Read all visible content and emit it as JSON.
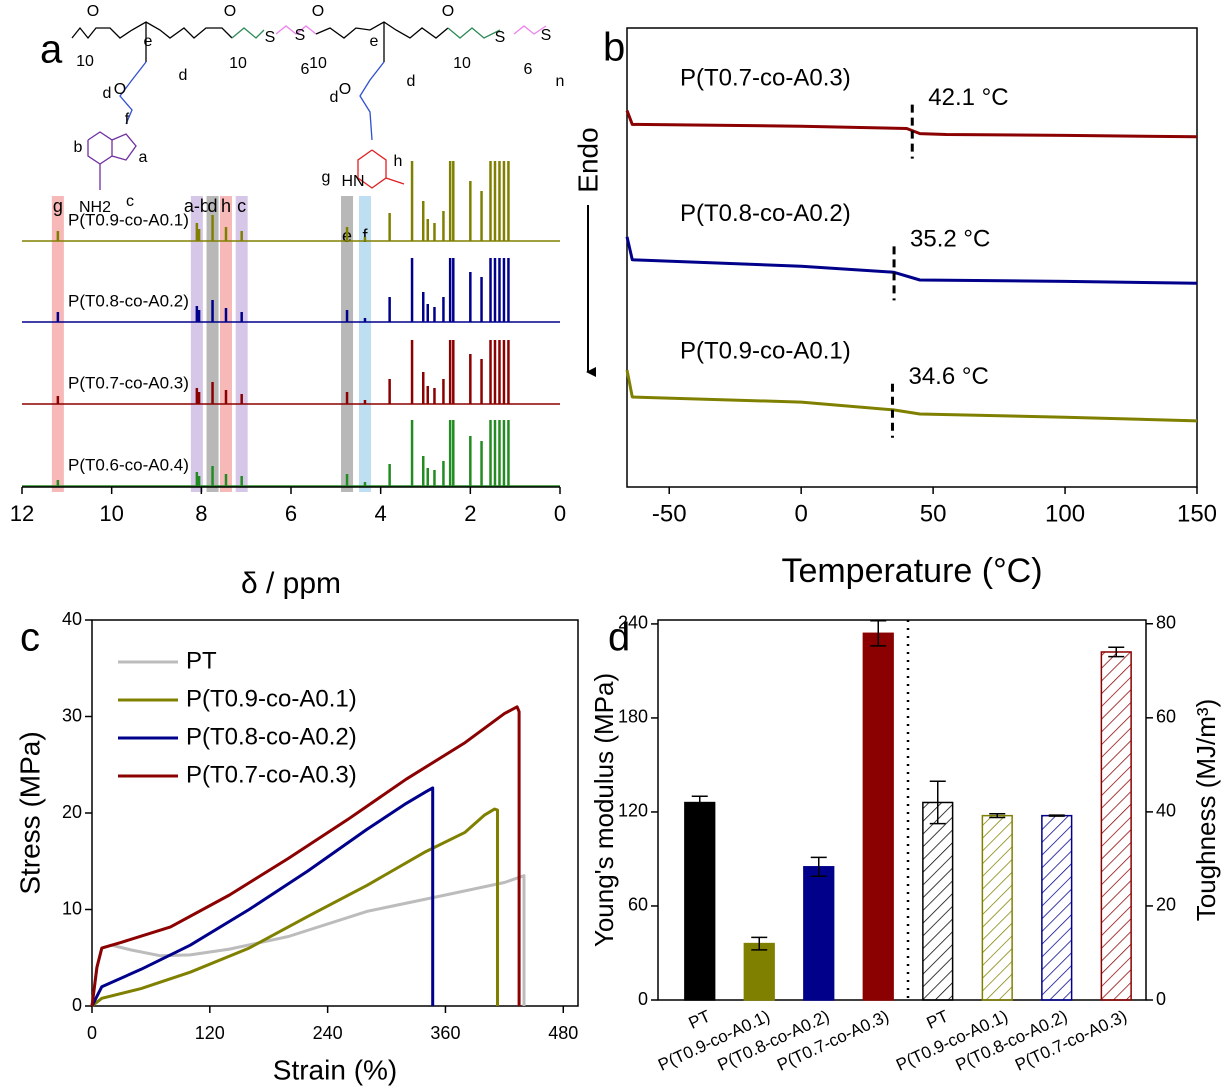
{
  "chart_data": [
    {
      "type": "spectrum",
      "panel": "a",
      "xlabel": "δ / ppm",
      "xlim": [
        12,
        0
      ],
      "xticks": [
        12,
        10,
        8,
        6,
        4,
        2,
        0
      ],
      "x": [
        11.2,
        8.1,
        8.05,
        7.75,
        7.45,
        7.1,
        4.75,
        4.35,
        3.8,
        3.3,
        3.05,
        2.95,
        2.8,
        2.6,
        2.45,
        2.38,
        2.0,
        1.75,
        1.55,
        1.45,
        1.35,
        1.25,
        1.15
      ],
      "series": [
        {
          "name": "P(T0.9-co-A0.1)",
          "color": "#808000",
          "values": [
            10,
            18,
            12,
            26,
            14,
            10,
            14,
            4,
            28,
            80,
            40,
            22,
            18,
            30,
            80,
            80,
            60,
            50,
            80,
            80,
            80,
            80,
            80
          ]
        },
        {
          "name": "P(T0.8-co-A0.2)",
          "color": "#00008b",
          "values": [
            10,
            16,
            12,
            22,
            14,
            10,
            12,
            4,
            25,
            64,
            30,
            18,
            15,
            25,
            64,
            64,
            50,
            45,
            64,
            64,
            64,
            64,
            64
          ]
        },
        {
          "name": "P(T0.7-co-A0.3)",
          "color": "#8b0000",
          "values": [
            8,
            16,
            12,
            22,
            14,
            10,
            12,
            4,
            25,
            64,
            32,
            18,
            16,
            25,
            64,
            64,
            50,
            45,
            64,
            64,
            64,
            64,
            64
          ]
        },
        {
          "name": "P(T0.6-co-A0.4)",
          "color": "#228b22",
          "values": [
            6,
            14,
            10,
            20,
            12,
            10,
            12,
            4,
            22,
            66,
            30,
            18,
            16,
            25,
            66,
            66,
            50,
            45,
            66,
            66,
            66,
            66,
            66
          ]
        }
      ],
      "bands": [
        {
          "label": "g",
          "x": 11.2,
          "color": "#f4a0a0",
          "text_color": "#e02020"
        },
        {
          "label": "a-b",
          "x": 8.1,
          "color": "#c8b4e0",
          "text_color": "#7030a0"
        },
        {
          "label": "d",
          "x": 7.75,
          "color": "#a0a0a0",
          "text_color": "#000000"
        },
        {
          "label": "h",
          "x": 7.45,
          "color": "#f4a0a0",
          "text_color": "#e02020"
        },
        {
          "label": "c",
          "x": 7.1,
          "color": "#c8b4e0",
          "text_color": "#7030a0"
        },
        {
          "label": "e",
          "x": 4.75,
          "color": "#a0a0a0",
          "text_color": "#000000"
        },
        {
          "label": "f",
          "x": 4.35,
          "color": "#a8d4ec",
          "text_color": "#4f81bd"
        }
      ],
      "structure_labels": [
        {
          "text": "10",
          "color": "#2e8b57"
        },
        {
          "text": "d",
          "color": "#000000"
        },
        {
          "text": "e",
          "color": "#000000"
        },
        {
          "text": "d",
          "color": "#000000"
        },
        {
          "text": "10",
          "color": "#2e8b57"
        },
        {
          "text": "6",
          "color": "#ee82ee"
        },
        {
          "text": "10",
          "color": "#2e8b57"
        },
        {
          "text": "d",
          "color": "#000000"
        },
        {
          "text": "e",
          "color": "#000000"
        },
        {
          "text": "d",
          "color": "#000000"
        },
        {
          "text": "10",
          "color": "#2e8b57"
        },
        {
          "text": "6",
          "color": "#ee82ee"
        },
        {
          "text": "n",
          "color": "#ee82ee"
        },
        {
          "text": "f",
          "color": "#4f81bd"
        },
        {
          "text": "b",
          "color": "#7030a0"
        },
        {
          "text": "a",
          "color": "#7030a0"
        },
        {
          "text": "NH2",
          "color": "#7030a0"
        },
        {
          "text": "c",
          "color": "#7030a0"
        },
        {
          "text": "g",
          "color": "#e02020"
        },
        {
          "text": "HN",
          "color": "#e02020"
        },
        {
          "text": "h",
          "color": "#e02020"
        },
        {
          "text": "O",
          "color": "#3050d0"
        },
        {
          "text": "O",
          "color": "#3050d0"
        },
        {
          "text": "O",
          "color": "#2e8b57"
        },
        {
          "text": "O",
          "color": "#2e8b57"
        },
        {
          "text": "O",
          "color": "#2e8b57"
        },
        {
          "text": "O",
          "color": "#2e8b57"
        },
        {
          "text": "S",
          "color": "#ee82ee"
        },
        {
          "text": "S",
          "color": "#ee82ee"
        },
        {
          "text": "S",
          "color": "#ee82ee"
        },
        {
          "text": "S",
          "color": "#ee82ee"
        }
      ]
    },
    {
      "type": "line",
      "panel": "b",
      "xlabel": "Temperature (°C)",
      "ylabel": "Endo",
      "xlim": [
        -66,
        150
      ],
      "xticks": [
        -50,
        0,
        50,
        100,
        150
      ],
      "ylim": [
        0,
        100
      ],
      "series": [
        {
          "name": "P(T0.7-co-A0.3)",
          "color": "#8b0000",
          "x": [
            -66,
            -64,
            0,
            40,
            45,
            55,
            100,
            150
          ],
          "values": [
            82,
            79,
            78.6,
            78.1,
            77,
            76.8,
            76.6,
            76.3
          ],
          "tg": {
            "value": 42.1,
            "label": "42.1 °C"
          }
        },
        {
          "name": "P(T0.8-co-A0.2)",
          "color": "#00008b",
          "x": [
            -66,
            -64,
            0,
            35,
            45,
            100,
            150
          ],
          "values": [
            54.5,
            49.5,
            48.1,
            46.8,
            45.1,
            44.8,
            44.4
          ],
          "tg": {
            "value": 35.2,
            "label": "35.2 °C"
          }
        },
        {
          "name": "P(T0.9-co-A0.1)",
          "color": "#808000",
          "x": [
            -66,
            -64,
            0,
            35,
            45,
            100,
            150
          ],
          "values": [
            25.5,
            19.6,
            18.5,
            16.8,
            15.9,
            15.2,
            14.4
          ],
          "tg": {
            "value": 34.6,
            "label": "34.6 °C"
          }
        }
      ]
    },
    {
      "type": "line",
      "panel": "c",
      "xlabel": "Strain (%)",
      "ylabel": "Stress (MPa)",
      "xlim": [
        0,
        495
      ],
      "xticks": [
        0,
        120,
        240,
        360,
        480
      ],
      "ylim": [
        0,
        40
      ],
      "yticks": [
        0,
        10,
        20,
        30,
        40
      ],
      "legend": "upper left",
      "series": [
        {
          "name": "PT",
          "color": "#bcbcbc",
          "x": [
            0,
            5,
            10,
            20,
            40,
            70,
            100,
            140,
            200,
            280,
            360,
            420,
            440,
            440
          ],
          "values": [
            0,
            4,
            6,
            6.3,
            5.8,
            5.2,
            5.3,
            5.9,
            7.2,
            9.8,
            11.5,
            12.8,
            13.5,
            0
          ]
        },
        {
          "name": "P(T0.9-co-A0.1)",
          "color": "#808000",
          "x": [
            0,
            10,
            50,
            100,
            160,
            220,
            280,
            340,
            380,
            400,
            410,
            413,
            413
          ],
          "values": [
            0,
            0.8,
            1.8,
            3.5,
            6,
            9.3,
            12.5,
            16,
            18,
            19.8,
            20.4,
            20.3,
            0
          ]
        },
        {
          "name": "P(T0.8-co-A0.2)",
          "color": "#00008b",
          "x": [
            0,
            10,
            50,
            100,
            160,
            220,
            280,
            320,
            340,
            347,
            347
          ],
          "values": [
            0,
            2,
            3.8,
            6.3,
            10,
            14,
            18.3,
            21,
            22.2,
            22.6,
            0
          ]
        },
        {
          "name": "P(T0.7-co-A0.3)",
          "color": "#8b0000",
          "x": [
            0,
            5,
            10,
            30,
            80,
            140,
            200,
            260,
            320,
            380,
            420,
            433,
            435,
            435
          ],
          "values": [
            0,
            4,
            6,
            6.6,
            8.2,
            11.5,
            15.3,
            19.3,
            23.5,
            27.3,
            30.3,
            31,
            30.5,
            0
          ]
        }
      ]
    },
    {
      "type": "bar",
      "panel": "d",
      "ylabel": "Young's modulus (MPa)",
      "y2label": "Toughness (MJ/m³)",
      "ylim": [
        0,
        242.5
      ],
      "yticks": [
        0,
        60,
        120,
        180,
        240
      ],
      "y2lim": [
        0,
        80.8
      ],
      "y2ticks": [
        0,
        20,
        40,
        60,
        80
      ],
      "categories": [
        "PT",
        "P(T0.9-co-A0.1)",
        "P(T0.8-co-A0.2)",
        "P(T0.7-co-A0.3)",
        "PT",
        "P(T0.9-co-A0.1)",
        "P(T0.8-co-A0.2)",
        "P(T0.7-co-A0.3)"
      ],
      "colors": [
        "#000000",
        "#808000",
        "#00008b",
        "#8b0000",
        "#000000",
        "#808000",
        "#00008b",
        "#8b0000"
      ],
      "series": [
        {
          "axis": "y",
          "hatch": false,
          "values": [
            126,
            36,
            85,
            234,
            null,
            null,
            null,
            null
          ],
          "errors": [
            4,
            4,
            6,
            8,
            null,
            null,
            null,
            null
          ]
        },
        {
          "axis": "y2",
          "hatch": true,
          "values": [
            null,
            null,
            null,
            null,
            42,
            39.2,
            39.2,
            74
          ],
          "errors": [
            null,
            null,
            null,
            null,
            4.5,
            0.4,
            0.1,
            1
          ]
        }
      ]
    }
  ]
}
